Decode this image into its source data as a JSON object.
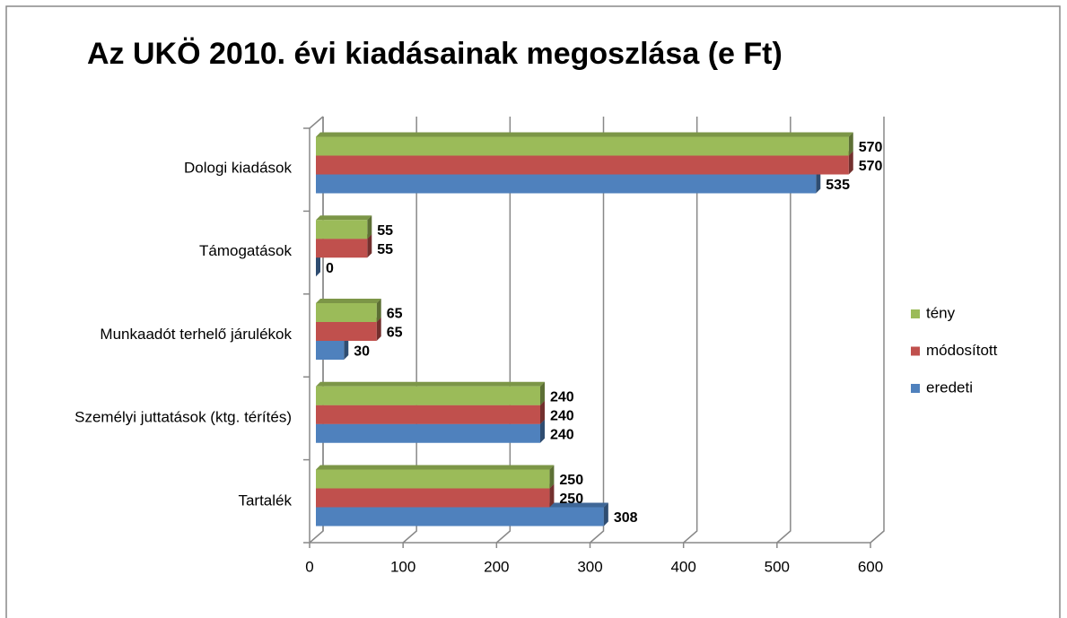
{
  "chart_data": {
    "type": "bar3d_horizontal",
    "title": "Az UKÖ 2010. évi kiadásainak megoszlása (e Ft)",
    "categories": [
      "Tartalék",
      "Személyi juttatások (ktg. térítés)",
      "Munkaadót terhelő járulékok",
      "Támogatások",
      "Dologi kiadások"
    ],
    "series": [
      {
        "name": "eredeti",
        "color": "#4f81bd",
        "values": [
          308,
          240,
          30,
          0,
          535
        ]
      },
      {
        "name": "módosított",
        "color": "#c0504d",
        "values": [
          250,
          240,
          65,
          55,
          570
        ]
      },
      {
        "name": "tény",
        "color": "#9bbb59",
        "values": [
          250,
          240,
          65,
          55,
          570
        ]
      }
    ],
    "xlim": [
      0,
      600
    ],
    "xticks": [
      0,
      100,
      200,
      300,
      400,
      500,
      600
    ],
    "grid": true,
    "legend": "right"
  }
}
